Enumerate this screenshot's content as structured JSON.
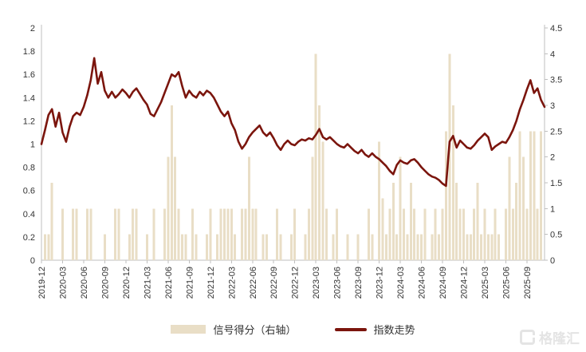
{
  "colors": {
    "background": "#FFFFFF",
    "axis": "#BFBFBF",
    "tick_text": "#333333",
    "bar": "#E9DEC6",
    "line": "#7B150D",
    "watermark": "#E4E4E4"
  },
  "icons": {
    "gelonghui-logo": "rounded-square-G"
  },
  "watermark": {
    "text": "格隆汇"
  },
  "chart_data": {
    "type": "combo",
    "title": "",
    "xlabel": "",
    "ylabel_left": "",
    "ylabel_right": "",
    "grid": false,
    "legend_position": "bottom-center",
    "x_labels": [
      "2019-12",
      "2020-03",
      "2020-06",
      "2020-09",
      "2020-12",
      "2021-03",
      "2021-06",
      "2021-09",
      "2021-12",
      "2022-03",
      "2022-06",
      "2022-09",
      "2022-12",
      "2023-03",
      "2023-06",
      "2023-09",
      "2023-12",
      "2024-03",
      "2024-06",
      "2024-09",
      "2024-12",
      "2025-03",
      "2025-06",
      "2025-09"
    ],
    "x_label_step_months": 3,
    "months_total": 71.5,
    "points_per_month": 2,
    "left_axis": {
      "min": 0,
      "max": 2,
      "tick_step": 0.2,
      "labels": [
        "2",
        "1.8",
        "1.6",
        "1.4",
        "1.2",
        "1",
        "0.8",
        "0.6",
        "0.4",
        "0.2",
        "0"
      ]
    },
    "right_axis": {
      "min": 0,
      "max": 4.5,
      "tick_step": 0.5,
      "labels": [
        "4.5",
        "4",
        "3.5",
        "3",
        "2.5",
        "2",
        "1.5",
        "1",
        "0.5",
        "0"
      ]
    },
    "series": [
      {
        "name": "信号得分（右轴）",
        "type": "bar",
        "axis": "right",
        "color": "#E9DEC6",
        "values": [
          0,
          0.5,
          0.5,
          1.5,
          0,
          0,
          1,
          0,
          0,
          1,
          1,
          0,
          0,
          1,
          1,
          0,
          0,
          0,
          0.5,
          0,
          0,
          1,
          1,
          0,
          0,
          0.5,
          1,
          1,
          0,
          0,
          0.5,
          0,
          1,
          0,
          0,
          1,
          2,
          3,
          2,
          1,
          0.5,
          0.5,
          0,
          1,
          0.5,
          0,
          0,
          0.5,
          1,
          0,
          0.5,
          1,
          1,
          1,
          1,
          0.5,
          0,
          1,
          1,
          2,
          1,
          1,
          0,
          0.5,
          0.5,
          0,
          0,
          1,
          0.5,
          0,
          0,
          0.5,
          1,
          0,
          0,
          0.5,
          1,
          2,
          4,
          3,
          2.3,
          1,
          0,
          0.5,
          1,
          0,
          0,
          0.5,
          0,
          0,
          0.5,
          0,
          0,
          1,
          0.5,
          0,
          2.3,
          1.2,
          0.5,
          1,
          1.5,
          0.5,
          2,
          1,
          0.5,
          1.5,
          1,
          0.5,
          0.5,
          1,
          0,
          0.5,
          1,
          0.5,
          1,
          2.5,
          4,
          3,
          1.5,
          1,
          1,
          0.5,
          0.5,
          1,
          1.5,
          0.5,
          1,
          0.5,
          0.5,
          1,
          0.5,
          0,
          1,
          2,
          1,
          1.5,
          2.5,
          2,
          1,
          2.5,
          2.5,
          1,
          2.5,
          0
        ]
      },
      {
        "name": "指数走势",
        "type": "line",
        "axis": "left",
        "color": "#7B150D",
        "values": [
          1.0,
          1.12,
          1.25,
          1.3,
          1.15,
          1.27,
          1.1,
          1.02,
          1.15,
          1.24,
          1.27,
          1.25,
          1.32,
          1.42,
          1.55,
          1.74,
          1.52,
          1.62,
          1.46,
          1.4,
          1.45,
          1.4,
          1.43,
          1.47,
          1.44,
          1.4,
          1.45,
          1.48,
          1.43,
          1.38,
          1.34,
          1.26,
          1.24,
          1.3,
          1.36,
          1.44,
          1.52,
          1.6,
          1.58,
          1.62,
          1.5,
          1.4,
          1.46,
          1.42,
          1.4,
          1.45,
          1.42,
          1.46,
          1.44,
          1.4,
          1.34,
          1.28,
          1.24,
          1.28,
          1.18,
          1.12,
          1.02,
          0.96,
          1.0,
          1.06,
          1.1,
          1.13,
          1.16,
          1.1,
          1.07,
          1.1,
          1.05,
          0.99,
          0.95,
          1.0,
          1.03,
          1.0,
          0.99,
          1.02,
          1.04,
          1.03,
          1.05,
          1.04,
          1.08,
          1.13,
          1.06,
          1.04,
          1.06,
          1.03,
          1.0,
          0.98,
          0.97,
          1.0,
          0.97,
          0.94,
          0.92,
          0.95,
          0.91,
          0.89,
          0.92,
          0.89,
          0.87,
          0.84,
          0.81,
          0.77,
          0.74,
          0.82,
          0.86,
          0.84,
          0.83,
          0.86,
          0.87,
          0.84,
          0.8,
          0.77,
          0.74,
          0.72,
          0.71,
          0.69,
          0.66,
          0.64,
          1.02,
          1.07,
          0.97,
          1.03,
          1.0,
          0.97,
          0.96,
          0.99,
          1.03,
          1.06,
          1.09,
          1.06,
          0.95,
          0.98,
          1.0,
          1.02,
          1.01,
          1.06,
          1.12,
          1.2,
          1.3,
          1.38,
          1.47,
          1.55,
          1.44,
          1.48,
          1.38,
          1.32
        ]
      }
    ]
  }
}
